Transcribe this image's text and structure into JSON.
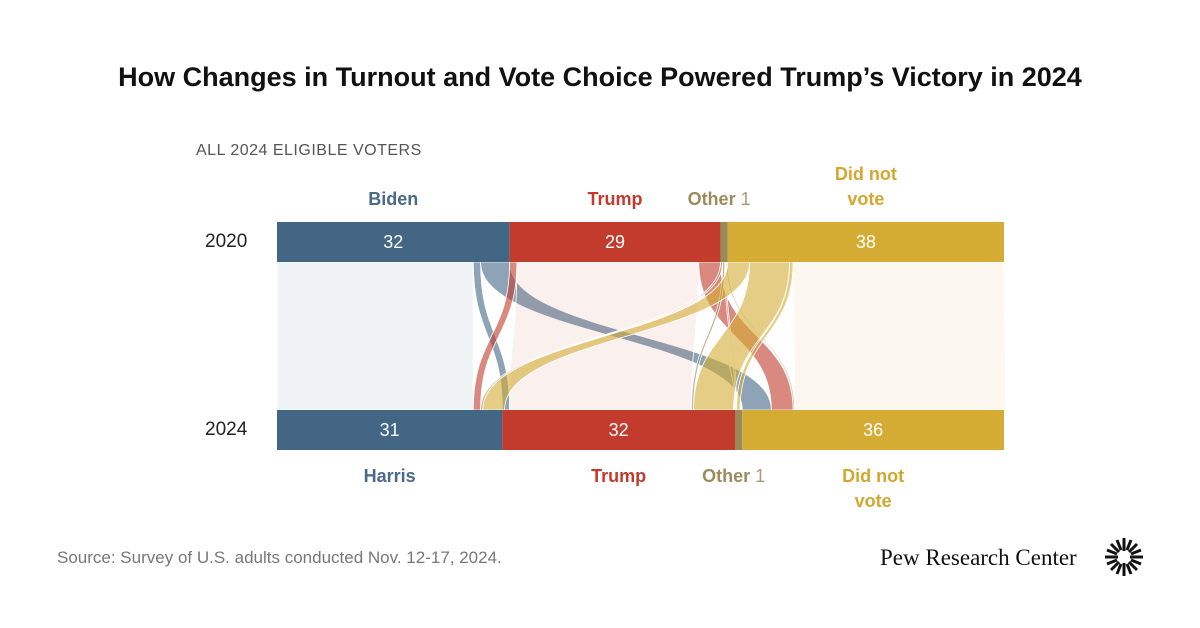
{
  "chart_data": {
    "type": "sankey",
    "title": "How Changes in Turnout and Vote Choice Powered Trump’s Victory in 2024",
    "subtitle": "ALL 2024 ELIGIBLE VOTERS",
    "stages": [
      {
        "label": "2020",
        "categories": [
          "Biden",
          "Trump",
          "Other",
          "Did not vote"
        ],
        "values": [
          32,
          29,
          1,
          38
        ],
        "colors": [
          "#436685",
          "#c23b2c",
          "#9a8a5a",
          "#d4ab33"
        ]
      },
      {
        "label": "2024",
        "categories": [
          "Harris",
          "Trump",
          "Other",
          "Did not vote"
        ],
        "values": [
          31,
          32,
          1,
          36
        ],
        "colors": [
          "#436685",
          "#c23b2c",
          "#9a8a5a",
          "#d4ab33"
        ]
      }
    ],
    "flows": [
      [
        27,
        1,
        0,
        4
      ],
      [
        1,
        25,
        0,
        3
      ],
      [
        0.3,
        0.3,
        0.2,
        0.2
      ],
      [
        3,
        5.5,
        0.5,
        29
      ]
    ]
  },
  "source": "Source: Survey of U.S. adults conducted Nov. 12-17, 2024.",
  "logo": "Pew Research Center"
}
